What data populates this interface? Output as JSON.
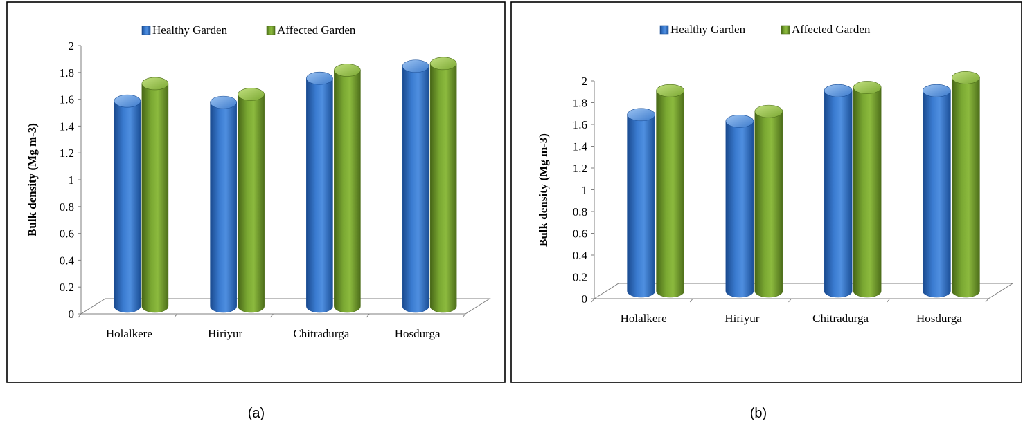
{
  "colors": {
    "healthy": "#2f6fc4",
    "healthy_dark": "#1b4f97",
    "healthy_light": "#6ea3e6",
    "affected": "#6f9a2b",
    "affected_dark": "#4d6e1a",
    "affected_light": "#a9cf62",
    "frame": "#000000",
    "axis": "#7f7f7f"
  },
  "chart_data": [
    {
      "type": "bar",
      "caption": "(a)",
      "categories": [
        "Holalkere",
        "Hiriyur",
        "Chitradurga",
        "Hosdurga"
      ],
      "series": [
        {
          "name": "Healthy Garden",
          "values": [
            1.53,
            1.52,
            1.7,
            1.79
          ]
        },
        {
          "name": "Affected Garden",
          "values": [
            1.66,
            1.58,
            1.76,
            1.81
          ]
        }
      ],
      "title": "",
      "xlabel": "",
      "ylabel": "Bulk density (Mg m-3)",
      "ylim": [
        0,
        2
      ],
      "yticks": [
        "0",
        "0.2",
        "0.4",
        "0.6",
        "0.8",
        "1",
        "1.2",
        "1.4",
        "1.6",
        "1.8",
        "2"
      ],
      "legend": "top-center",
      "grid": false
    },
    {
      "type": "bar",
      "caption": "(b)",
      "categories": [
        "Holalkere",
        "Hiriyur",
        "Chitradurga",
        "Hosdurga"
      ],
      "series": [
        {
          "name": "Healthy Garden",
          "values": [
            1.62,
            1.56,
            1.84,
            1.84
          ]
        },
        {
          "name": "Affected Garden",
          "values": [
            1.84,
            1.65,
            1.87,
            1.96
          ]
        }
      ],
      "title": "",
      "xlabel": "",
      "ylabel": "Bulk density (Mg m-3)",
      "ylim": [
        0,
        2
      ],
      "yticks": [
        "0",
        "0.2",
        "0.4",
        "0.6",
        "0.8",
        "1",
        "1.2",
        "1.4",
        "1.6",
        "1.8",
        "2"
      ],
      "legend": "top-center",
      "grid": false
    }
  ]
}
